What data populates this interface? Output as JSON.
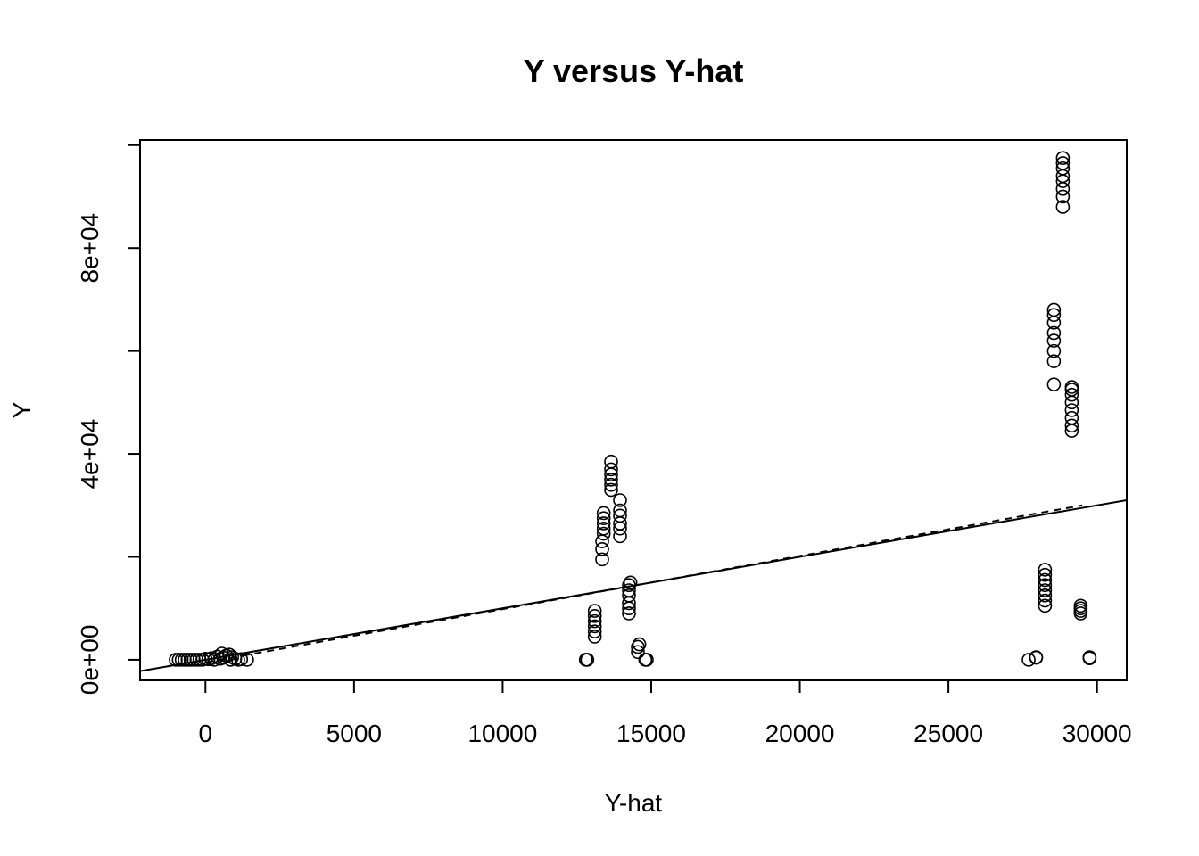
{
  "chart_data": {
    "type": "scatter",
    "title": "Y versus Y-hat",
    "xlabel": "Y-hat",
    "ylabel": "Y",
    "xlim": [
      -2200,
      31000
    ],
    "ylim": [
      -4000,
      101000
    ],
    "x_ticks": [
      0,
      5000,
      10000,
      15000,
      20000,
      25000,
      30000
    ],
    "x_tick_labels": [
      "0",
      "5000",
      "10000",
      "15000",
      "20000",
      "25000",
      "30000"
    ],
    "y_ticks": [
      0,
      20000,
      40000,
      60000,
      80000,
      100000
    ],
    "y_tick_labels": [
      "0e+00",
      "",
      "4e+04",
      "",
      "8e+04",
      ""
    ],
    "grid": false,
    "marker": "open-circle",
    "lines": [
      {
        "style": "solid",
        "x": [
          -2200,
          31000
        ],
        "y": [
          -2200,
          31000
        ]
      },
      {
        "style": "dashed",
        "x": [
          0,
          29500
        ],
        "y": [
          -500,
          30000
        ]
      }
    ],
    "points": [
      {
        "x": -1000,
        "y": 0
      },
      {
        "x": -900,
        "y": 0
      },
      {
        "x": -800,
        "y": 0
      },
      {
        "x": -700,
        "y": 0
      },
      {
        "x": -600,
        "y": 0
      },
      {
        "x": -500,
        "y": 0
      },
      {
        "x": -400,
        "y": 0
      },
      {
        "x": -300,
        "y": 0
      },
      {
        "x": -200,
        "y": 0
      },
      {
        "x": -100,
        "y": 0
      },
      {
        "x": 0,
        "y": 200
      },
      {
        "x": 100,
        "y": 100
      },
      {
        "x": 200,
        "y": 300
      },
      {
        "x": 300,
        "y": 0
      },
      {
        "x": 400,
        "y": 600
      },
      {
        "x": 500,
        "y": 200
      },
      {
        "x": 550,
        "y": 1200
      },
      {
        "x": 600,
        "y": 400
      },
      {
        "x": 700,
        "y": 800
      },
      {
        "x": 800,
        "y": 1000
      },
      {
        "x": 850,
        "y": 0
      },
      {
        "x": 900,
        "y": 500
      },
      {
        "x": 1000,
        "y": 200
      },
      {
        "x": 1100,
        "y": 0
      },
      {
        "x": 1200,
        "y": 100
      },
      {
        "x": 1400,
        "y": 0
      },
      {
        "x": 12800,
        "y": 0
      },
      {
        "x": 12850,
        "y": 0
      },
      {
        "x": 13100,
        "y": 4500
      },
      {
        "x": 13100,
        "y": 5500
      },
      {
        "x": 13100,
        "y": 6500
      },
      {
        "x": 13100,
        "y": 7500
      },
      {
        "x": 13100,
        "y": 8500
      },
      {
        "x": 13100,
        "y": 9500
      },
      {
        "x": 13350,
        "y": 19500
      },
      {
        "x": 13350,
        "y": 21500
      },
      {
        "x": 13350,
        "y": 23000
      },
      {
        "x": 13400,
        "y": 24500
      },
      {
        "x": 13400,
        "y": 25500
      },
      {
        "x": 13400,
        "y": 26500
      },
      {
        "x": 13400,
        "y": 27500
      },
      {
        "x": 13400,
        "y": 28500
      },
      {
        "x": 13650,
        "y": 33000
      },
      {
        "x": 13650,
        "y": 34000
      },
      {
        "x": 13650,
        "y": 35000
      },
      {
        "x": 13650,
        "y": 36000
      },
      {
        "x": 13650,
        "y": 37000
      },
      {
        "x": 13650,
        "y": 38500
      },
      {
        "x": 13950,
        "y": 24000
      },
      {
        "x": 13950,
        "y": 25500
      },
      {
        "x": 13950,
        "y": 26500
      },
      {
        "x": 13950,
        "y": 28000
      },
      {
        "x": 13950,
        "y": 29000
      },
      {
        "x": 13950,
        "y": 31000
      },
      {
        "x": 14250,
        "y": 9000
      },
      {
        "x": 14250,
        "y": 10000
      },
      {
        "x": 14250,
        "y": 11000
      },
      {
        "x": 14250,
        "y": 12500
      },
      {
        "x": 14250,
        "y": 13500
      },
      {
        "x": 14250,
        "y": 14500
      },
      {
        "x": 14300,
        "y": 15000
      },
      {
        "x": 14550,
        "y": 1500
      },
      {
        "x": 14550,
        "y": 2500
      },
      {
        "x": 14600,
        "y": 3000
      },
      {
        "x": 14850,
        "y": 0
      },
      {
        "x": 14800,
        "y": 0
      },
      {
        "x": 27700,
        "y": 0
      },
      {
        "x": 27950,
        "y": 500
      },
      {
        "x": 27950,
        "y": 400
      },
      {
        "x": 28250,
        "y": 10500
      },
      {
        "x": 28250,
        "y": 11500
      },
      {
        "x": 28250,
        "y": 12500
      },
      {
        "x": 28250,
        "y": 13500
      },
      {
        "x": 28250,
        "y": 14500
      },
      {
        "x": 28250,
        "y": 15500
      },
      {
        "x": 28250,
        "y": 16500
      },
      {
        "x": 28250,
        "y": 17500
      },
      {
        "x": 28550,
        "y": 53500
      },
      {
        "x": 28550,
        "y": 58000
      },
      {
        "x": 28550,
        "y": 60000
      },
      {
        "x": 28550,
        "y": 62000
      },
      {
        "x": 28550,
        "y": 63500
      },
      {
        "x": 28550,
        "y": 65500
      },
      {
        "x": 28550,
        "y": 67000
      },
      {
        "x": 28550,
        "y": 68000
      },
      {
        "x": 28850,
        "y": 88000
      },
      {
        "x": 28850,
        "y": 90000
      },
      {
        "x": 28850,
        "y": 91500
      },
      {
        "x": 28850,
        "y": 93000
      },
      {
        "x": 28850,
        "y": 94000
      },
      {
        "x": 28850,
        "y": 95500
      },
      {
        "x": 28850,
        "y": 96500
      },
      {
        "x": 28850,
        "y": 97500
      },
      {
        "x": 29150,
        "y": 44500
      },
      {
        "x": 29150,
        "y": 45500
      },
      {
        "x": 29150,
        "y": 47000
      },
      {
        "x": 29150,
        "y": 48500
      },
      {
        "x": 29150,
        "y": 50000
      },
      {
        "x": 29150,
        "y": 51500
      },
      {
        "x": 29150,
        "y": 52500
      },
      {
        "x": 29150,
        "y": 53000
      },
      {
        "x": 29450,
        "y": 9000
      },
      {
        "x": 29450,
        "y": 9500
      },
      {
        "x": 29450,
        "y": 10000
      },
      {
        "x": 29450,
        "y": 10500
      },
      {
        "x": 29750,
        "y": 300
      },
      {
        "x": 29750,
        "y": 500
      }
    ]
  }
}
